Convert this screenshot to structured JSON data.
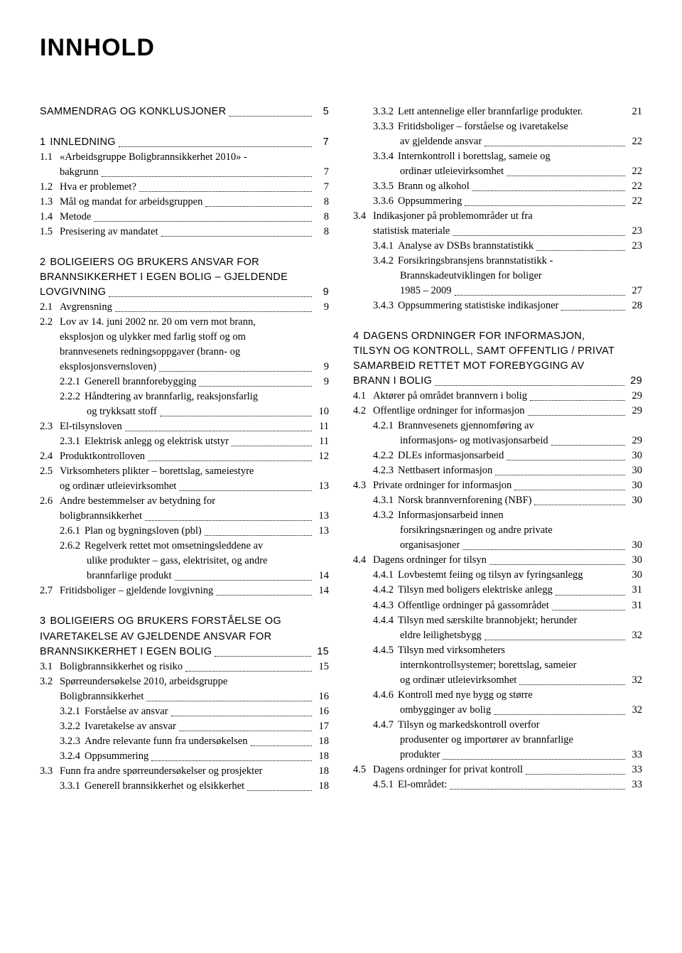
{
  "title": "INNHOLD",
  "colors": {
    "text": "#000000",
    "background": "#ffffff"
  },
  "fonts": {
    "heading_family": "Arial, Helvetica, sans-serif",
    "body_family": "Georgia, 'Times New Roman', serif",
    "heading_size_pt": 26,
    "body_size_pt": 11
  },
  "columns": [
    {
      "entries": [
        {
          "kind": "section",
          "num": "",
          "text": "SAMMENDRAG OG KONKLUSJONER",
          "page": "5"
        },
        {
          "kind": "spacer-lg"
        },
        {
          "kind": "section",
          "num": "1",
          "text": "INNLEDNING",
          "page": "7"
        },
        {
          "kind": "item",
          "indent": 0,
          "num": "1.1",
          "text": "«Arbeidsgruppe Boligbrannsikkerhet 2010» -"
        },
        {
          "kind": "cont",
          "indent": 0,
          "text": "bakgrunn",
          "page": "7"
        },
        {
          "kind": "item",
          "indent": 0,
          "num": "1.2",
          "text": "Hva er problemet?",
          "page": "7"
        },
        {
          "kind": "item",
          "indent": 0,
          "num": "1.3",
          "text": "Mål og mandat for arbeidsgruppen",
          "page": "8"
        },
        {
          "kind": "item",
          "indent": 0,
          "num": "1.4",
          "text": "Metode",
          "page": "8"
        },
        {
          "kind": "item",
          "indent": 0,
          "num": "1.5",
          "text": "Presisering av mandatet",
          "page": "8"
        },
        {
          "kind": "spacer-lg"
        },
        {
          "kind": "section",
          "num": "2",
          "text": "BOLIGEIERS OG BRUKERS ANSVAR FOR"
        },
        {
          "kind": "section-cont",
          "text": "BRANNSIKKERHET I EGEN BOLIG – GJELDENDE"
        },
        {
          "kind": "section-cont",
          "text": "LOVGIVNING",
          "page": "9"
        },
        {
          "kind": "item",
          "indent": 0,
          "num": "2.1",
          "text": "Avgrensning",
          "page": "9"
        },
        {
          "kind": "item",
          "indent": 0,
          "num": "2.2",
          "text": "Lov av 14. juni 2002 nr. 20 om vern mot brann,"
        },
        {
          "kind": "cont",
          "indent": 0,
          "text": "eksplosjon og ulykker med farlig stoff og om"
        },
        {
          "kind": "cont",
          "indent": 0,
          "text": "brannvesenets redningsoppgaver (brann- og"
        },
        {
          "kind": "cont",
          "indent": 0,
          "text": "eksplosjonsvernsloven)",
          "page": "9"
        },
        {
          "kind": "item",
          "indent": 1,
          "num": "2.2.1",
          "text": "Generell brannforebygging",
          "page": "9"
        },
        {
          "kind": "item",
          "indent": 1,
          "num": "2.2.2",
          "text": "Håndtering av brannfarlig, reaksjonsfarlig"
        },
        {
          "kind": "cont",
          "indent": 1,
          "text": "og trykksatt stoff",
          "page": "10"
        },
        {
          "kind": "item",
          "indent": 0,
          "num": "2.3",
          "text": "El-tilsynsloven",
          "page": "11"
        },
        {
          "kind": "item",
          "indent": 1,
          "num": "2.3.1",
          "text": "Elektrisk anlegg og elektrisk utstyr",
          "page": "11"
        },
        {
          "kind": "item",
          "indent": 0,
          "num": "2.4",
          "text": "Produktkontrolloven",
          "page": "12"
        },
        {
          "kind": "item",
          "indent": 0,
          "num": "2.5",
          "text": "Virksomheters plikter – borettslag, sameiestyre"
        },
        {
          "kind": "cont",
          "indent": 0,
          "text": "og ordinær utleievirksomhet",
          "page": "13"
        },
        {
          "kind": "item",
          "indent": 0,
          "num": "2.6",
          "text": "Andre bestemmelser av betydning for"
        },
        {
          "kind": "cont",
          "indent": 0,
          "text": "boligbrannsikkerhet",
          "page": "13"
        },
        {
          "kind": "item",
          "indent": 1,
          "num": "2.6.1",
          "text": "Plan og bygningsloven (pbl)",
          "page": "13"
        },
        {
          "kind": "item",
          "indent": 1,
          "num": "2.6.2",
          "text": "Regelverk rettet mot omsetningsleddene av"
        },
        {
          "kind": "cont",
          "indent": 1,
          "text": "ulike produkter – gass, elektrisitet, og andre"
        },
        {
          "kind": "cont",
          "indent": 1,
          "text": "brannfarlige produkt",
          "page": "14"
        },
        {
          "kind": "item",
          "indent": 0,
          "num": "2.7",
          "text": "Fritidsboliger – gjeldende lovgivning",
          "page": "14"
        },
        {
          "kind": "spacer-lg"
        },
        {
          "kind": "section",
          "num": "3",
          "text": "BOLIGEIERS OG BRUKERS FORSTÅELSE OG"
        },
        {
          "kind": "section-cont",
          "text": "IVARETAKELSE AV GJELDENDE ANSVAR FOR"
        },
        {
          "kind": "section-cont",
          "text": "BRANNSIKKERHET I EGEN BOLIG",
          "page": "15"
        },
        {
          "kind": "item",
          "indent": 0,
          "num": "3.1",
          "text": "Boligbrannsikkerhet og risiko",
          "page": "15"
        },
        {
          "kind": "item",
          "indent": 0,
          "num": "3.2",
          "text": "Spørreundersøkelse 2010, arbeidsgruppe"
        },
        {
          "kind": "cont",
          "indent": 0,
          "text": "Boligbrannsikkerhet",
          "page": "16"
        },
        {
          "kind": "item",
          "indent": 1,
          "num": "3.2.1",
          "text": "Forståelse av ansvar",
          "page": "16"
        },
        {
          "kind": "item",
          "indent": 1,
          "num": "3.2.2",
          "text": "Ivaretakelse av ansvar",
          "page": "17"
        },
        {
          "kind": "item",
          "indent": 1,
          "num": "3.2.3",
          "text": "Andre relevante funn fra undersøkelsen",
          "page": "18"
        },
        {
          "kind": "item",
          "indent": 1,
          "num": "3.2.4",
          "text": "Oppsummering",
          "page": "18"
        },
        {
          "kind": "item",
          "indent": 0,
          "num": "3.3",
          "text": "Funn fra andre spørreundersøkelser og prosjekter",
          "page": "18",
          "tight": true
        },
        {
          "kind": "item",
          "indent": 1,
          "num": "3.3.1",
          "text": "Generell brannsikkerhet og elsikkerhet",
          "page": "18"
        }
      ]
    },
    {
      "entries": [
        {
          "kind": "item",
          "indent": 1,
          "num": "3.3.2",
          "text": "Lett antennelige eller brannfarlige produkter.",
          "page": "21",
          "tight": true
        },
        {
          "kind": "item",
          "indent": 1,
          "num": "3.3.3",
          "text": "Fritidsboliger – forståelse og ivaretakelse"
        },
        {
          "kind": "cont",
          "indent": 1,
          "text": "av gjeldende ansvar",
          "page": "22"
        },
        {
          "kind": "item",
          "indent": 1,
          "num": "3.3.4",
          "text": "Internkontroll i borettslag, sameie og"
        },
        {
          "kind": "cont",
          "indent": 1,
          "text": "ordinær utleievirksomhet",
          "page": "22"
        },
        {
          "kind": "item",
          "indent": 1,
          "num": "3.3.5",
          "text": "Brann og alkohol",
          "page": "22"
        },
        {
          "kind": "item",
          "indent": 1,
          "num": "3.3.6",
          "text": "Oppsummering",
          "page": "22"
        },
        {
          "kind": "item",
          "indent": 0,
          "num": "3.4",
          "text": "Indikasjoner på problemområder ut fra"
        },
        {
          "kind": "cont",
          "indent": 0,
          "text": "statistisk materiale",
          "page": "23"
        },
        {
          "kind": "item",
          "indent": 1,
          "num": "3.4.1",
          "text": "Analyse av DSBs brannstatistikk",
          "page": "23"
        },
        {
          "kind": "item",
          "indent": 1,
          "num": "3.4.2",
          "text": "Forsikringsbransjens brannstatistikk -"
        },
        {
          "kind": "cont",
          "indent": 1,
          "text": "Brannskadeutviklingen for boliger"
        },
        {
          "kind": "cont",
          "indent": 1,
          "text": "1985 – 2009",
          "page": "27"
        },
        {
          "kind": "item",
          "indent": 1,
          "num": "3.4.3",
          "text": "Oppsummering statistiske indikasjoner",
          "page": "28"
        },
        {
          "kind": "spacer-lg"
        },
        {
          "kind": "section",
          "num": "4",
          "text": "DAGENS ORDNINGER FOR INFORMASJON,"
        },
        {
          "kind": "section-cont",
          "text": "TILSYN OG KONTROLL, SAMT OFFENTLIG / PRIVAT"
        },
        {
          "kind": "section-cont",
          "text": "SAMARBEID RETTET MOT FOREBYGGING AV"
        },
        {
          "kind": "section-cont",
          "text": "BRANN I BOLIG",
          "page": "29"
        },
        {
          "kind": "item",
          "indent": 0,
          "num": "4.1",
          "text": "Aktører på området brannvern i bolig",
          "page": "29"
        },
        {
          "kind": "item",
          "indent": 0,
          "num": "4.2",
          "text": "Offentlige ordninger for informasjon",
          "page": "29"
        },
        {
          "kind": "item",
          "indent": 1,
          "num": "4.2.1",
          "text": "Brannvesenets gjennomføring av"
        },
        {
          "kind": "cont",
          "indent": 1,
          "text": "informasjons- og motivasjonsarbeid",
          "page": "29"
        },
        {
          "kind": "item",
          "indent": 1,
          "num": "4.2.2",
          "text": "DLEs informasjonsarbeid",
          "page": "30"
        },
        {
          "kind": "item",
          "indent": 1,
          "num": "4.2.3",
          "text": "Nettbasert informasjon",
          "page": "30"
        },
        {
          "kind": "item",
          "indent": 0,
          "num": "4.3",
          "text": "Private ordninger for informasjon",
          "page": "30"
        },
        {
          "kind": "item",
          "indent": 1,
          "num": "4.3.1",
          "text": "Norsk brannvernforening (NBF)",
          "page": "30"
        },
        {
          "kind": "item",
          "indent": 1,
          "num": "4.3.2",
          "text": "Informasjonsarbeid innen"
        },
        {
          "kind": "cont",
          "indent": 1,
          "text": "forsikringsnæringen og andre private"
        },
        {
          "kind": "cont",
          "indent": 1,
          "text": "organisasjoner",
          "page": "30"
        },
        {
          "kind": "item",
          "indent": 0,
          "num": "4.4",
          "text": "Dagens ordninger for tilsyn",
          "page": "30"
        },
        {
          "kind": "item",
          "indent": 1,
          "num": "4.4.1",
          "text": "Lovbestemt feiing og tilsyn av fyringsanlegg",
          "page": "30",
          "tight": true
        },
        {
          "kind": "item",
          "indent": 1,
          "num": "4.4.2",
          "text": "Tilsyn med boligers elektriske anlegg",
          "page": "31"
        },
        {
          "kind": "item",
          "indent": 1,
          "num": "4.4.3",
          "text": "Offentlige ordninger på gassområdet",
          "page": "31"
        },
        {
          "kind": "item",
          "indent": 1,
          "num": "4.4.4",
          "text": "Tilsyn med særskilte brannobjekt; herunder"
        },
        {
          "kind": "cont",
          "indent": 1,
          "text": "eldre leilighetsbygg",
          "page": "32"
        },
        {
          "kind": "item",
          "indent": 1,
          "num": "4.4.5",
          "text": "Tilsyn med virksomheters"
        },
        {
          "kind": "cont",
          "indent": 1,
          "text": "internkontrollsystemer; borettslag, sameier"
        },
        {
          "kind": "cont",
          "indent": 1,
          "text": "og ordinær utleievirksomhet",
          "page": "32"
        },
        {
          "kind": "item",
          "indent": 1,
          "num": "4.4.6",
          "text": "Kontroll med nye bygg og større"
        },
        {
          "kind": "cont",
          "indent": 1,
          "text": "ombygginger av bolig",
          "page": "32"
        },
        {
          "kind": "item",
          "indent": 1,
          "num": "4.4.7",
          "text": "Tilsyn og markedskontroll overfor"
        },
        {
          "kind": "cont",
          "indent": 1,
          "text": "produsenter og importører av brannfarlige"
        },
        {
          "kind": "cont",
          "indent": 1,
          "text": "produkter",
          "page": "33"
        },
        {
          "kind": "item",
          "indent": 0,
          "num": "4.5",
          "text": "Dagens ordninger for privat kontroll",
          "page": "33"
        },
        {
          "kind": "item",
          "indent": 1,
          "num": "4.5.1",
          "text": "El-området:",
          "page": "33"
        }
      ]
    }
  ]
}
